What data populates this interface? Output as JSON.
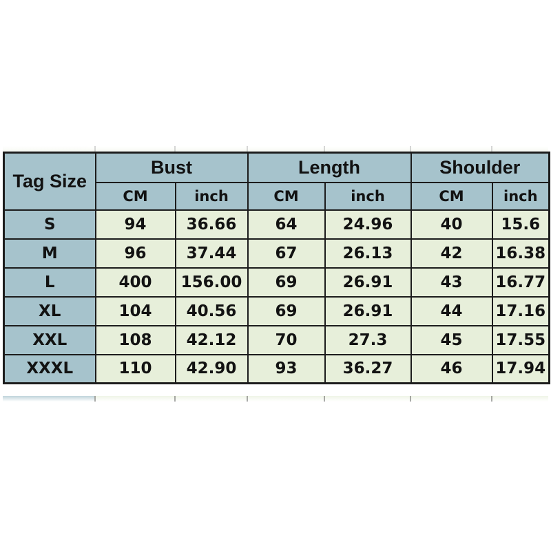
{
  "chart_data": {
    "type": "table",
    "corner_header": "Tag Size",
    "column_groups": [
      {
        "label": "Bust",
        "sub": [
          "CM",
          "inch"
        ]
      },
      {
        "label": "Length",
        "sub": [
          "CM",
          "inch"
        ]
      },
      {
        "label": "Shoulder",
        "sub": [
          "CM",
          "inch"
        ]
      }
    ],
    "rows": [
      {
        "size": "S",
        "bust_cm": "94",
        "bust_inch": "36.66",
        "length_cm": "64",
        "length_inch": "24.96",
        "shoulder_cm": "40",
        "shoulder_inch": "15.6"
      },
      {
        "size": "M",
        "bust_cm": "96",
        "bust_inch": "37.44",
        "length_cm": "67",
        "length_inch": "26.13",
        "shoulder_cm": "42",
        "shoulder_inch": "16.38"
      },
      {
        "size": "L",
        "bust_cm": "400",
        "bust_inch": "156.00",
        "length_cm": "69",
        "length_inch": "26.91",
        "shoulder_cm": "43",
        "shoulder_inch": "16.77"
      },
      {
        "size": "XL",
        "bust_cm": "104",
        "bust_inch": "40.56",
        "length_cm": "69",
        "length_inch": "26.91",
        "shoulder_cm": "44",
        "shoulder_inch": "17.16"
      },
      {
        "size": "XXL",
        "bust_cm": "108",
        "bust_inch": "42.12",
        "length_cm": "70",
        "length_inch": "27.3",
        "shoulder_cm": "45",
        "shoulder_inch": "17.55"
      },
      {
        "size": "XXXL",
        "bust_cm": "110",
        "bust_inch": "42.90",
        "length_cm": "93",
        "length_inch": "36.27",
        "shoulder_cm": "46",
        "shoulder_inch": "17.94"
      }
    ]
  },
  "colors": {
    "page_bg": "#ffffff",
    "header_bg": "#a6c3cc",
    "cell_bg": "#e7efda",
    "border": "#1c1c1c",
    "text": "#121212"
  }
}
